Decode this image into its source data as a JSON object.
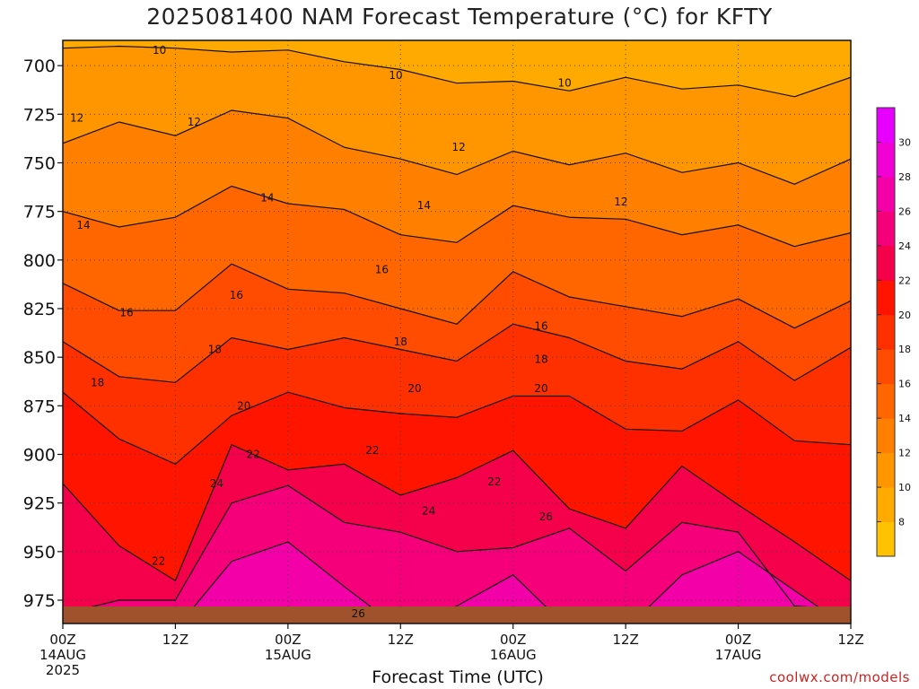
{
  "title": "2025081400 NAM Forecast Temperature (°C) for KFTY",
  "credit": "coolwx.com/models",
  "chart_data": {
    "type": "heatmap",
    "title": "2025081400 NAM Forecast Temperature (°C) for KFTY",
    "xlabel": "Forecast Time (UTC)",
    "ylabel": "",
    "x_ticks": [
      {
        "hour": 0,
        "label": "00Z",
        "sub": "14AUG",
        "sub2": "2025"
      },
      {
        "hour": 12,
        "label": "12Z",
        "sub": "",
        "sub2": ""
      },
      {
        "hour": 24,
        "label": "00Z",
        "sub": "15AUG",
        "sub2": ""
      },
      {
        "hour": 36,
        "label": "12Z",
        "sub": "",
        "sub2": ""
      },
      {
        "hour": 48,
        "label": "00Z",
        "sub": "16AUG",
        "sub2": ""
      },
      {
        "hour": 60,
        "label": "12Z",
        "sub": "",
        "sub2": ""
      },
      {
        "hour": 72,
        "label": "00Z",
        "sub": "17AUG",
        "sub2": ""
      },
      {
        "hour": 84,
        "label": "12Z",
        "sub": "",
        "sub2": ""
      }
    ],
    "xlim": [
      0,
      84
    ],
    "y_ticks": [
      700,
      725,
      750,
      775,
      800,
      825,
      850,
      875,
      900,
      925,
      950,
      975
    ],
    "ylim": [
      687,
      987
    ],
    "grid": true,
    "colorbar": {
      "placement": "right",
      "ticks": [
        8,
        10,
        12,
        14,
        16,
        18,
        20,
        22,
        24,
        26,
        28,
        30
      ],
      "colors": [
        "#ffc200",
        "#ffaa00",
        "#ff9600",
        "#ff8000",
        "#ff6600",
        "#ff4c00",
        "#ff3000",
        "#ff1400",
        "#f5004a",
        "#f5007a",
        "#f300a8",
        "#f000d2",
        "#e800ff"
      ]
    },
    "ground_color": "#a0522d",
    "hours": [
      0,
      6,
      12,
      18,
      24,
      30,
      36,
      42,
      48,
      54,
      60,
      66,
      72,
      78,
      84
    ],
    "isotherms": [
      {
        "temp": 10,
        "label": "10",
        "p": [
          691,
          690,
          691,
          693,
          692,
          698,
          702,
          709,
          708,
          713,
          706,
          712,
          710,
          716,
          706
        ]
      },
      {
        "temp": 12,
        "label": "12",
        "p": [
          740,
          729,
          736,
          723,
          727,
          742,
          748,
          756,
          744,
          751,
          745,
          755,
          750,
          761,
          748
        ]
      },
      {
        "temp": 14,
        "label": "14",
        "p": [
          775,
          783,
          778,
          762,
          771,
          774,
          787,
          791,
          772,
          778,
          779,
          787,
          782,
          793,
          786
        ]
      },
      {
        "temp": 16,
        "label": "16",
        "p": [
          812,
          826,
          826,
          802,
          815,
          817,
          825,
          833,
          806,
          819,
          824,
          829,
          820,
          835,
          821
        ]
      },
      {
        "temp": 18,
        "label": "18",
        "p": [
          842,
          860,
          863,
          840,
          846,
          840,
          846,
          852,
          833,
          840,
          852,
          856,
          842,
          862,
          845
        ]
      },
      {
        "temp": 20,
        "label": "20",
        "p": [
          868,
          892,
          905,
          880,
          868,
          876,
          879,
          881,
          870,
          870,
          887,
          888,
          872,
          893,
          895
        ]
      },
      {
        "temp": 22,
        "label": "22",
        "p": [
          915,
          947,
          965,
          895,
          908,
          905,
          921,
          912,
          898,
          928,
          938,
          906,
          926,
          945,
          965
        ]
      },
      {
        "temp": 24,
        "label": "24",
        "p": [
          982,
          975,
          975,
          925,
          916,
          935,
          940,
          950,
          948,
          938,
          960,
          935,
          940,
          978,
          980
        ]
      },
      {
        "temp": 26,
        "label": "26",
        "p": [
          990,
          990,
          990,
          955,
          945,
          968,
          990,
          978,
          962,
          990,
          990,
          962,
          950,
          970,
          990
        ]
      }
    ],
    "contour_labels": [
      {
        "text": "10",
        "hour": 10.3,
        "p": 692
      },
      {
        "text": "12",
        "hour": 1.5,
        "p": 727
      },
      {
        "text": "12",
        "hour": 14.0,
        "p": 729
      },
      {
        "text": "14",
        "hour": 2.2,
        "p": 782
      },
      {
        "text": "14",
        "hour": 21.8,
        "p": 768
      },
      {
        "text": "16",
        "hour": 6.8,
        "p": 827
      },
      {
        "text": "16",
        "hour": 18.5,
        "p": 818
      },
      {
        "text": "18",
        "hour": 3.7,
        "p": 863
      },
      {
        "text": "18",
        "hour": 16.2,
        "p": 846
      },
      {
        "text": "20",
        "hour": 19.3,
        "p": 875
      },
      {
        "text": "22",
        "hour": 20.3,
        "p": 900
      },
      {
        "text": "24",
        "hour": 16.4,
        "p": 915
      },
      {
        "text": "22",
        "hour": 10.2,
        "p": 955
      },
      {
        "text": "10",
        "hour": 35.5,
        "p": 705
      },
      {
        "text": "12",
        "hour": 42.2,
        "p": 742
      },
      {
        "text": "16",
        "hour": 34.0,
        "p": 805
      },
      {
        "text": "18",
        "hour": 36.0,
        "p": 842
      },
      {
        "text": "20",
        "hour": 37.5,
        "p": 866
      },
      {
        "text": "22",
        "hour": 33.0,
        "p": 898
      },
      {
        "text": "24",
        "hour": 39.0,
        "p": 929
      },
      {
        "text": "26",
        "hour": 31.5,
        "p": 982
      },
      {
        "text": "14",
        "hour": 38.5,
        "p": 772
      },
      {
        "text": "10",
        "hour": 53.5,
        "p": 709
      },
      {
        "text": "12",
        "hour": 59.5,
        "p": 770
      },
      {
        "text": "16",
        "hour": 51.0,
        "p": 834
      },
      {
        "text": "18",
        "hour": 51.0,
        "p": 851
      },
      {
        "text": "20",
        "hour": 51.0,
        "p": 866
      },
      {
        "text": "22",
        "hour": 46.0,
        "p": 914
      },
      {
        "text": "26",
        "hour": 51.5,
        "p": 932
      }
    ]
  }
}
